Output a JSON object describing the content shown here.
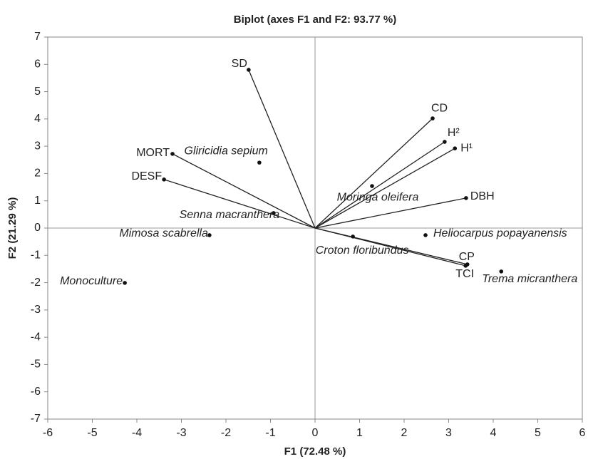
{
  "chart_data": {
    "type": "biplot",
    "title": "Biplot (axes F1 and F2: 93.77 %)",
    "xlabel": "F1 (72.48 %)",
    "ylabel": "F2 (21.29 %)",
    "xlim": [
      -6,
      6
    ],
    "ylim": [
      -7,
      7
    ],
    "xticks": [
      -6,
      -5,
      -4,
      -3,
      -2,
      -1,
      0,
      1,
      2,
      3,
      4,
      5,
      6
    ],
    "yticks": [
      -7,
      -6,
      -5,
      -4,
      -3,
      -2,
      -1,
      0,
      1,
      2,
      3,
      4,
      5,
      6,
      7
    ],
    "variables": {
      "labels": [
        "SD",
        "CD",
        "H²",
        "H¹",
        "DBH",
        "MORT",
        "DESF",
        "CP",
        "TCI"
      ],
      "x": [
        -1.49,
        2.64,
        2.91,
        3.14,
        3.39,
        -3.2,
        -3.39,
        3.42,
        3.38
      ],
      "y": [
        5.8,
        4.02,
        3.16,
        2.92,
        1.1,
        2.72,
        1.78,
        -1.33,
        -1.38
      ]
    },
    "observations": {
      "labels": [
        "Gliricidia sepium",
        "Moringa oleifera",
        "Senna macranthera",
        "Mimosa scabrella",
        "Heliocarpus popayanensis",
        "Croton floribundus",
        "Trema micranthera",
        "Monoculture"
      ],
      "x": [
        -1.25,
        1.28,
        -0.93,
        -2.37,
        2.48,
        0.85,
        4.18,
        -4.27
      ],
      "y": [
        2.4,
        1.54,
        0.55,
        -0.26,
        -0.26,
        -0.31,
        -1.59,
        -2.01
      ]
    }
  }
}
